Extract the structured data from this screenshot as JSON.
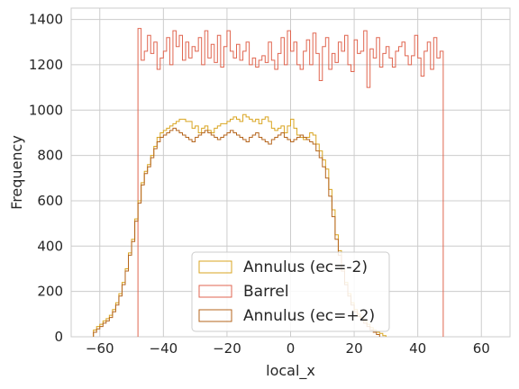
{
  "chart_data": {
    "type": "histogram",
    "xlabel": "local_x",
    "ylabel": "Frequency",
    "xlim": [
      -69,
      69
    ],
    "ylim": [
      0,
      1450
    ],
    "xticks": [
      -60,
      -40,
      -20,
      0,
      20,
      40,
      60
    ],
    "yticks": [
      0,
      200,
      400,
      600,
      800,
      1000,
      1200,
      1400
    ],
    "grid": true,
    "legend_position": "bottom-center",
    "series": [
      {
        "name": "Annulus (ec=-2)",
        "color": "#d9a521",
        "bin_start": -62,
        "bin_width": 1,
        "values": [
          30,
          45,
          55,
          70,
          80,
          95,
          120,
          150,
          190,
          240,
          300,
          370,
          430,
          520,
          600,
          680,
          730,
          760,
          800,
          840,
          880,
          900,
          910,
          920,
          930,
          940,
          950,
          960,
          960,
          950,
          950,
          920,
          930,
          900,
          920,
          930,
          910,
          900,
          920,
          930,
          940,
          940,
          950,
          960,
          970,
          960,
          950,
          980,
          970,
          960,
          950,
          960,
          940,
          960,
          970,
          950,
          920,
          910,
          920,
          930,
          900,
          930,
          960,
          920,
          890,
          880,
          870,
          880,
          900,
          890,
          850,
          820,
          780,
          740,
          650,
          560,
          450,
          380,
          300,
          240,
          190,
          150,
          120,
          100,
          85,
          70,
          55,
          40,
          30,
          20,
          15,
          5,
          0,
          0,
          0,
          0,
          0,
          0,
          0,
          0,
          0,
          0,
          0,
          0,
          0,
          0,
          0,
          0,
          0,
          0,
          0,
          0,
          0,
          0,
          0,
          0,
          0,
          0,
          0,
          0,
          0,
          0,
          0,
          0
        ]
      },
      {
        "name": "Barrel",
        "color": "#e06650",
        "bin_start": -48,
        "bin_width": 1,
        "values": [
          1360,
          1220,
          1260,
          1330,
          1250,
          1300,
          1180,
          1230,
          1260,
          1320,
          1200,
          1350,
          1280,
          1330,
          1220,
          1300,
          1230,
          1280,
          1260,
          1320,
          1200,
          1350,
          1230,
          1290,
          1210,
          1330,
          1190,
          1280,
          1350,
          1260,
          1230,
          1290,
          1220,
          1260,
          1300,
          1200,
          1230,
          1190,
          1220,
          1240,
          1210,
          1300,
          1220,
          1180,
          1250,
          1320,
          1200,
          1350,
          1260,
          1300,
          1200,
          1180,
          1260,
          1310,
          1200,
          1340,
          1250,
          1130,
          1280,
          1320,
          1180,
          1250,
          1210,
          1300,
          1260,
          1330,
          1200,
          1170,
          1310,
          1250,
          1260,
          1350,
          1100,
          1270,
          1230,
          1320,
          1190,
          1250,
          1280,
          1230,
          1190,
          1260,
          1280,
          1300,
          1240,
          1200,
          1240,
          1330,
          1230,
          1150,
          1260,
          1300,
          1180,
          1320,
          1230,
          1260,
          0,
          0,
          0,
          0,
          0,
          0,
          0,
          0,
          0,
          0,
          0,
          0,
          0,
          0,
          0,
          0,
          0,
          0,
          0,
          0,
          0,
          0,
          0,
          0
        ]
      },
      {
        "name": "Annulus (ec=+2)",
        "color": "#b5651d",
        "bin_start": -62,
        "bin_width": 1,
        "values": [
          20,
          35,
          45,
          60,
          70,
          85,
          110,
          140,
          180,
          230,
          290,
          360,
          420,
          510,
          590,
          670,
          720,
          750,
          790,
          830,
          860,
          880,
          890,
          900,
          910,
          920,
          910,
          900,
          890,
          880,
          870,
          860,
          880,
          890,
          900,
          910,
          900,
          890,
          880,
          870,
          880,
          890,
          900,
          910,
          900,
          890,
          880,
          870,
          860,
          880,
          890,
          900,
          880,
          870,
          860,
          850,
          870,
          880,
          890,
          900,
          880,
          870,
          860,
          870,
          880,
          890,
          880,
          870,
          860,
          850,
          820,
          790,
          750,
          700,
          620,
          530,
          430,
          360,
          290,
          230,
          180,
          140,
          110,
          90,
          75,
          60,
          45,
          30,
          20,
          10,
          0,
          0,
          0,
          0,
          0,
          0,
          0,
          0,
          0,
          0,
          0,
          0,
          0,
          0,
          0,
          0,
          0,
          0,
          0,
          0,
          0,
          0,
          0,
          0,
          0,
          0,
          0,
          0,
          0,
          0,
          0,
          0,
          0,
          0
        ]
      }
    ]
  }
}
